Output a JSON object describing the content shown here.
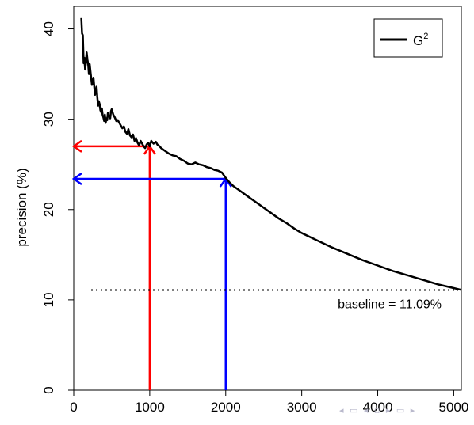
{
  "chart_data": {
    "type": "line",
    "title": "",
    "xlabel": "",
    "ylabel": "precision (%)",
    "xlim": [
      0,
      5100
    ],
    "ylim": [
      0,
      42.5
    ],
    "x_ticks": [
      0,
      1000,
      2000,
      3000,
      4000,
      5000
    ],
    "y_ticks": [
      0,
      10,
      20,
      30,
      40
    ],
    "x_tick_labels": [
      "0",
      "1000",
      "2000",
      "3000",
      "4000",
      "5000"
    ],
    "y_tick_labels": [
      "0",
      "10",
      "20",
      "30",
      "40"
    ],
    "grid": false,
    "legend": {
      "position": "top-right",
      "entries": [
        {
          "label_base": "G",
          "label_sup": "2",
          "color": "#000000"
        }
      ]
    },
    "series": [
      {
        "name": "G2",
        "color": "#000000",
        "x": [
          100,
          110,
          120,
          130,
          140,
          150,
          160,
          170,
          180,
          190,
          200,
          210,
          220,
          230,
          240,
          250,
          260,
          270,
          280,
          290,
          300,
          310,
          320,
          330,
          340,
          350,
          360,
          370,
          380,
          390,
          400,
          410,
          420,
          430,
          440,
          450,
          460,
          470,
          480,
          490,
          500,
          520,
          540,
          560,
          580,
          600,
          620,
          640,
          660,
          680,
          700,
          720,
          740,
          760,
          780,
          800,
          820,
          840,
          860,
          880,
          900,
          920,
          940,
          960,
          980,
          1000,
          1020,
          1050,
          1080,
          1100,
          1130,
          1150,
          1200,
          1250,
          1300,
          1350,
          1400,
          1450,
          1500,
          1550,
          1600,
          1650,
          1700,
          1750,
          1800,
          1850,
          1900,
          1950,
          2000,
          2050,
          2100,
          2200,
          2300,
          2400,
          2500,
          2600,
          2700,
          2800,
          2900,
          3000,
          3200,
          3400,
          3600,
          3800,
          4000,
          4200,
          4400,
          4600,
          4800,
          5000,
          5100
        ],
        "y": [
          41.2,
          39.5,
          39.3,
          36.2,
          36.8,
          35.5,
          36.2,
          37.4,
          36.6,
          36.1,
          35.0,
          36.1,
          35.3,
          34.5,
          33.8,
          34.1,
          34.6,
          33.6,
          32.7,
          33.1,
          33.6,
          32.5,
          31.5,
          32.0,
          31.7,
          31.0,
          30.8,
          31.2,
          30.5,
          30.2,
          29.8,
          30.5,
          29.6,
          30.1,
          29.9,
          30.7,
          30.3,
          30.4,
          30.1,
          30.9,
          31.1,
          30.5,
          30.2,
          29.8,
          29.9,
          29.6,
          29.3,
          29.0,
          29.2,
          28.6,
          28.4,
          28.9,
          28.2,
          28.0,
          28.3,
          27.6,
          27.9,
          27.4,
          27.1,
          27.6,
          27.3,
          27.0,
          26.8,
          27.2,
          27.4,
          27.0,
          27.6,
          27.3,
          27.5,
          27.2,
          27.0,
          26.8,
          26.5,
          26.2,
          26.0,
          25.9,
          25.6,
          25.4,
          25.1,
          25.0,
          25.2,
          25.0,
          24.9,
          24.7,
          24.6,
          24.4,
          24.3,
          24.1,
          23.5,
          23.0,
          22.6,
          22.0,
          21.4,
          20.8,
          20.2,
          19.6,
          19.0,
          18.5,
          17.9,
          17.4,
          16.6,
          15.8,
          15.1,
          14.4,
          13.8,
          13.2,
          12.7,
          12.2,
          11.7,
          11.3,
          11.1
        ]
      }
    ],
    "reference_lines": [
      {
        "type": "horizontal",
        "y": 11.09,
        "style": "dotted",
        "color": "#000000",
        "label": "baseline = 11.09%"
      }
    ],
    "annotations": [
      {
        "type": "arrow-vertical",
        "x": 1000,
        "from_y": 0,
        "to_y": 27.0,
        "color": "#ff0000"
      },
      {
        "type": "arrow-horizontal",
        "y": 27.0,
        "from_x": 1000,
        "to_x": 0,
        "color": "#ff0000"
      },
      {
        "type": "arrow-vertical",
        "x": 2000,
        "from_y": 0,
        "to_y": 23.4,
        "color": "#0000ff"
      },
      {
        "type": "arrow-horizontal",
        "y": 23.4,
        "from_x": 2000,
        "to_x": 0,
        "color": "#0000ff"
      }
    ]
  },
  "nav_glyphs": "◂ ▭ ◂ ▫ ▸ ▭ ▸"
}
